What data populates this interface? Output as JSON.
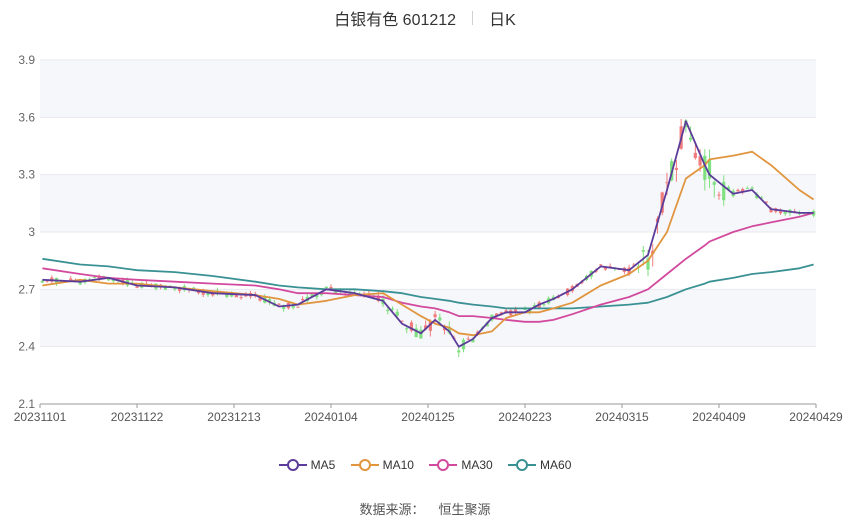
{
  "header": {
    "stock": "白银有色 601212",
    "period": "日K"
  },
  "source": {
    "label": "数据来源：",
    "value": "恒生聚源"
  },
  "colors": {
    "up": "#f07c7c",
    "down": "#7fe07f",
    "ma5": "#5b3c9a",
    "ma10": "#e0953e",
    "ma30": "#d24a9e",
    "ma60": "#3a9193",
    "grid": "#e8e8ee",
    "band": "#f6f7fb"
  },
  "chart_data": {
    "type": "candlestick",
    "yticks": [
      "2.1",
      "2.4",
      "2.7",
      "3",
      "3.3",
      "3.6",
      "3.9"
    ],
    "ylim": [
      2.1,
      3.9
    ],
    "xtick_labels": [
      "20231101",
      "20231122",
      "20231213",
      "20240104",
      "20240125",
      "20240223",
      "20240315",
      "20240409",
      "20240429"
    ],
    "legend": [
      {
        "label": "MA5",
        "color": "#5b3c9a"
      },
      {
        "label": "MA10",
        "color": "#e0953e"
      },
      {
        "label": "MA30",
        "color": "#d24a9e"
      },
      {
        "label": "MA60",
        "color": "#3a9193"
      }
    ],
    "ma_x": [
      0,
      8,
      14,
      20,
      28,
      36,
      45,
      50,
      54,
      60,
      66,
      72,
      76,
      80,
      83,
      86,
      88,
      91,
      95,
      98,
      102,
      105,
      108,
      112,
      118,
      124,
      128,
      132,
      136,
      140,
      141,
      146,
      150,
      154,
      160,
      163
    ],
    "ma5": [
      2.75,
      2.74,
      2.76,
      2.72,
      2.71,
      2.68,
      2.67,
      2.61,
      2.62,
      2.7,
      2.68,
      2.64,
      2.52,
      2.47,
      2.54,
      2.48,
      2.4,
      2.44,
      2.55,
      2.58,
      2.58,
      2.62,
      2.65,
      2.7,
      2.82,
      2.8,
      2.88,
      3.22,
      3.58,
      3.35,
      3.3,
      3.2,
      3.22,
      3.12,
      3.1,
      3.1
    ],
    "ma10": [
      2.72,
      2.75,
      2.73,
      2.73,
      2.71,
      2.69,
      2.67,
      2.65,
      2.62,
      2.64,
      2.67,
      2.68,
      2.62,
      2.56,
      2.52,
      2.5,
      2.47,
      2.46,
      2.48,
      2.55,
      2.58,
      2.58,
      2.6,
      2.63,
      2.72,
      2.78,
      2.85,
      3.0,
      3.28,
      3.35,
      3.38,
      3.4,
      3.42,
      3.35,
      3.22,
      3.17
    ],
    "ma30": [
      2.81,
      2.78,
      2.76,
      2.75,
      2.74,
      2.73,
      2.72,
      2.7,
      2.68,
      2.68,
      2.67,
      2.66,
      2.63,
      2.61,
      2.6,
      2.58,
      2.56,
      2.56,
      2.55,
      2.54,
      2.53,
      2.53,
      2.54,
      2.57,
      2.62,
      2.66,
      2.7,
      2.78,
      2.86,
      2.93,
      2.95,
      3.0,
      3.03,
      3.05,
      3.08,
      3.1
    ],
    "ma60": [
      2.86,
      2.83,
      2.82,
      2.8,
      2.79,
      2.77,
      2.74,
      2.72,
      2.71,
      2.7,
      2.7,
      2.69,
      2.68,
      2.66,
      2.65,
      2.64,
      2.63,
      2.62,
      2.61,
      2.6,
      2.6,
      2.6,
      2.6,
      2.6,
      2.61,
      2.62,
      2.63,
      2.66,
      2.7,
      2.73,
      2.74,
      2.76,
      2.78,
      2.79,
      2.81,
      2.83
    ]
  }
}
